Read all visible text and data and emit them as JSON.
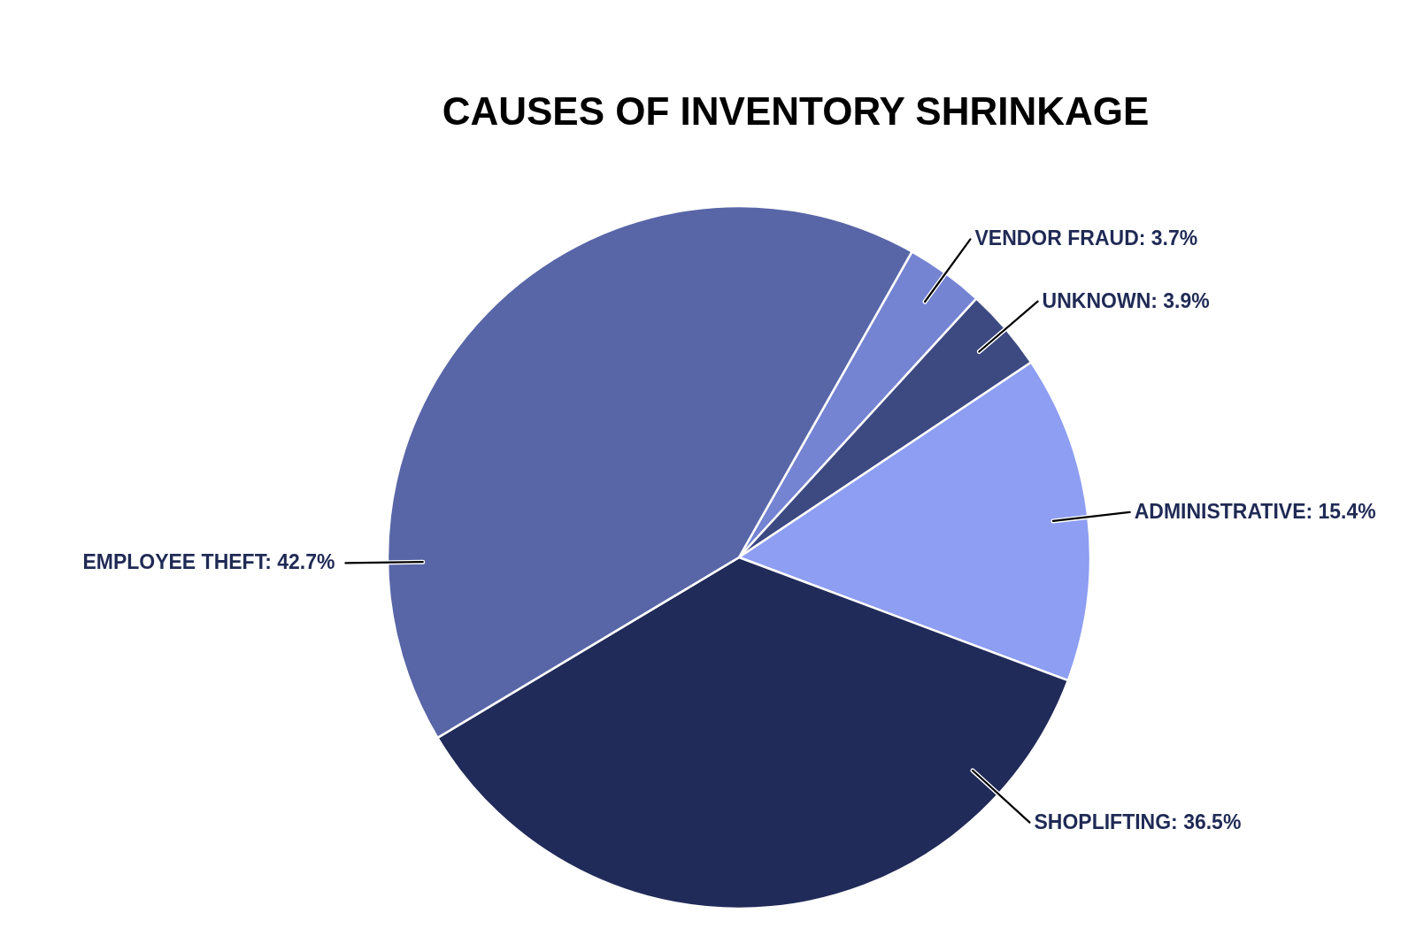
{
  "chart_data": {
    "type": "pie",
    "title": "CAUSES OF INVENTORY SHRINKAGE",
    "categories": [
      "VENDOR FRAUD",
      "UNKNOWN",
      "ADMINISTRATIVE",
      "SHOPLIFTING",
      "EMPLOYEE THEFT"
    ],
    "values": [
      3.7,
      3.9,
      15.4,
      36.5,
      42.7
    ],
    "colors": [
      "#7584d2",
      "#3d4a82",
      "#8e9ef2",
      "#212b59",
      "#5866a8"
    ],
    "value_labels": [
      "3.7%",
      "3.9%",
      "15.4%",
      "36.5%",
      "42.7%"
    ]
  }
}
